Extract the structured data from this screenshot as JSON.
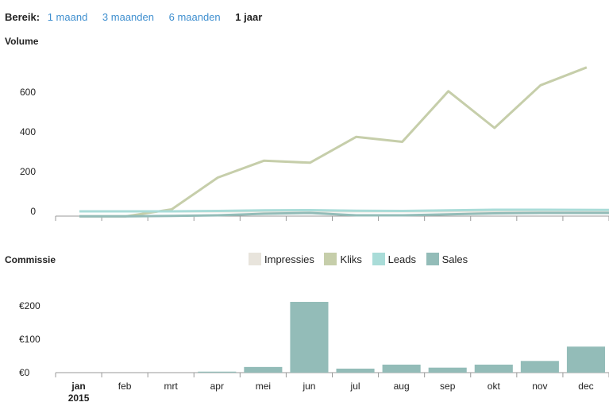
{
  "range": {
    "label": "Bereik:",
    "options": [
      "1 maand",
      "3 maanden",
      "6 maanden",
      "1 jaar"
    ],
    "active": 3
  },
  "volume_title": "Volume",
  "commissie_title": "Commissie",
  "colors": {
    "impressies": "#e8e4dc",
    "kliks": "#c6ceaa",
    "leads": "#a9dcd8",
    "sales": "#93bcb8",
    "axis": "#999999",
    "active_text": "#222222",
    "link": "#3f8fcf"
  },
  "legend": [
    "Impressies",
    "Kliks",
    "Leads",
    "Sales"
  ],
  "chart_data": [
    {
      "type": "line",
      "title": "Volume",
      "categories": [
        "jan",
        "feb",
        "mrt",
        "apr",
        "mei",
        "jun",
        "jul",
        "aug",
        "sep",
        "okt",
        "nov",
        "dec"
      ],
      "yticks": [
        "0",
        "200",
        "400",
        "600"
      ],
      "ylim": [
        0,
        750
      ],
      "series": [
        {
          "name": "Impressies",
          "values": [
            0,
            0,
            0,
            0,
            0,
            0,
            0,
            0,
            0,
            0,
            0,
            0
          ]
        },
        {
          "name": "Kliks",
          "values": [
            -25,
            -25,
            10,
            170,
            255,
            245,
            375,
            350,
            605,
            420,
            635,
            725
          ]
        },
        {
          "name": "Leads",
          "values": [
            0,
            0,
            0,
            2,
            5,
            6,
            3,
            2,
            5,
            8,
            8,
            7
          ]
        },
        {
          "name": "Sales",
          "values": [
            -25,
            -25,
            -23,
            -20,
            -12,
            -8,
            -20,
            -20,
            -15,
            -10,
            -8,
            -8
          ]
        }
      ]
    },
    {
      "type": "bar",
      "title": "Commissie",
      "categories": [
        "jan",
        "feb",
        "mrt",
        "apr",
        "mei",
        "jun",
        "jul",
        "aug",
        "sep",
        "okt",
        "nov",
        "dec"
      ],
      "year_label": "2015",
      "yticks": [
        "€0",
        "€100",
        "€200"
      ],
      "ylim": [
        0,
        250
      ],
      "series": [
        {
          "name": "Sales",
          "values": [
            0,
            0,
            0,
            3,
            17,
            212,
            12,
            24,
            15,
            24,
            35,
            78
          ]
        }
      ]
    }
  ]
}
